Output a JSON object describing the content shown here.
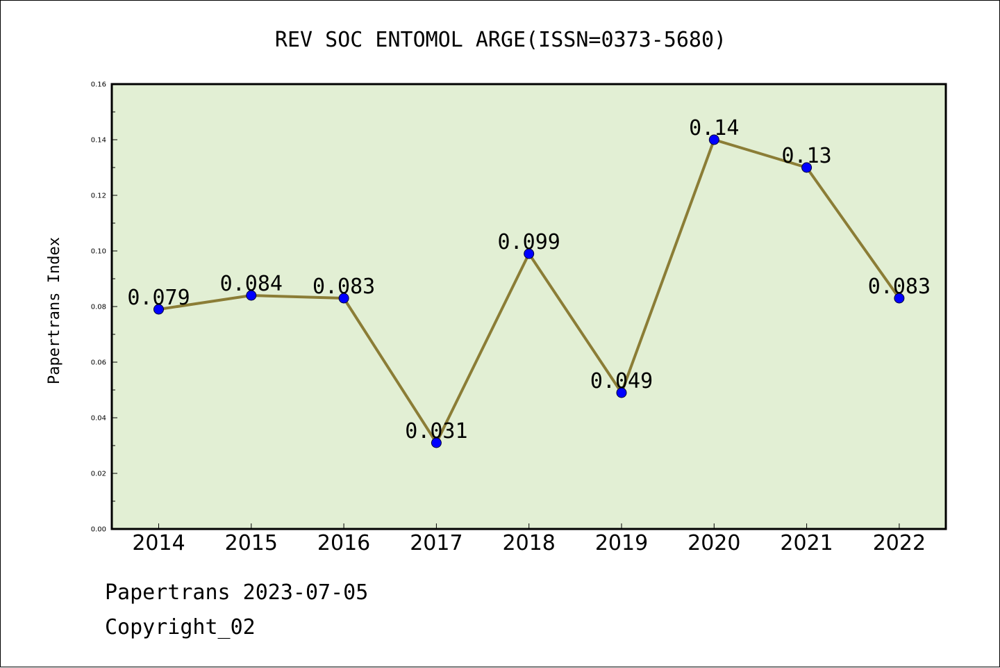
{
  "colors": {
    "plot_background": "#e2efd4",
    "line": "#8b7d36",
    "marker": "#0000ff",
    "frame": "#000000"
  },
  "chart_data": {
    "type": "line",
    "title": "REV SOC ENTOMOL ARGE(ISSN=0373-5680)",
    "xlabel": "",
    "ylabel": "Papertrans Index",
    "categories": [
      "2014",
      "2015",
      "2016",
      "2017",
      "2018",
      "2019",
      "2020",
      "2021",
      "2022"
    ],
    "values": [
      0.079,
      0.084,
      0.083,
      0.031,
      0.099,
      0.049,
      0.14,
      0.13,
      0.083
    ],
    "data_labels": [
      "0.079",
      "0.084",
      "0.083",
      "0.031",
      "0.099",
      "0.049",
      "0.14",
      "0.13",
      "0.083"
    ],
    "ylim": [
      0,
      0.16
    ],
    "yticks": [
      "0.00",
      "0.02",
      "0.04",
      "0.06",
      "0.08",
      "0.10",
      "0.12",
      "0.14",
      "0.16"
    ],
    "grid": false,
    "legend": "none"
  },
  "footer": {
    "line1": "Papertrans 2023-07-05",
    "line2": "Copyright_02"
  }
}
